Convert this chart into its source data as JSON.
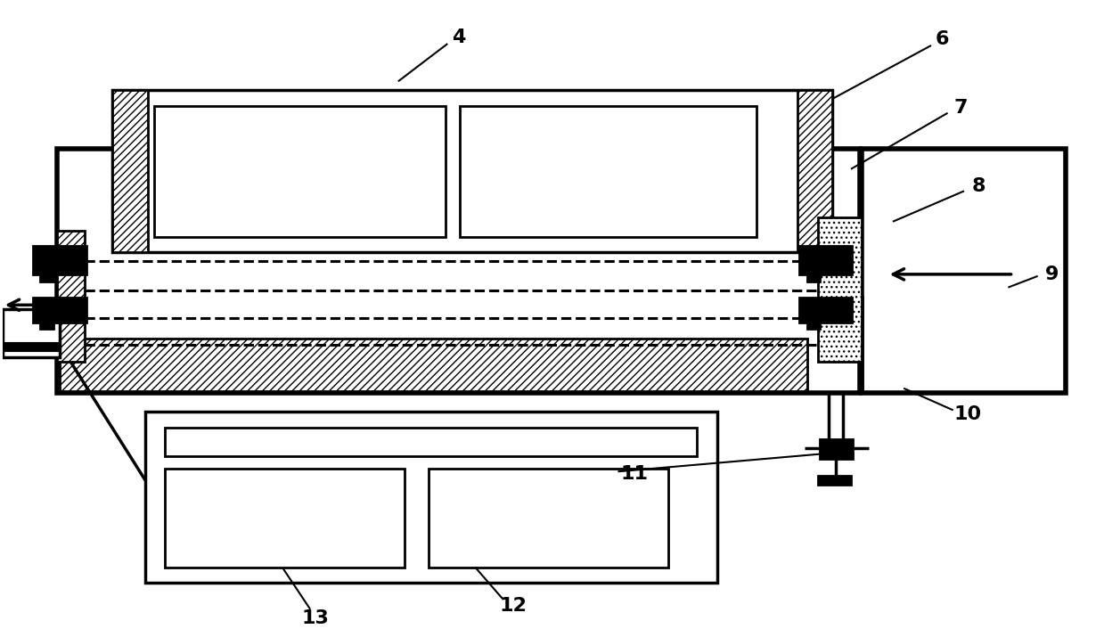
{
  "bg_color": "#ffffff",
  "line_color": "#000000",
  "lw": 2.0,
  "lw_thick": 4.0,
  "lw_med": 2.5,
  "label_fontsize": 16
}
